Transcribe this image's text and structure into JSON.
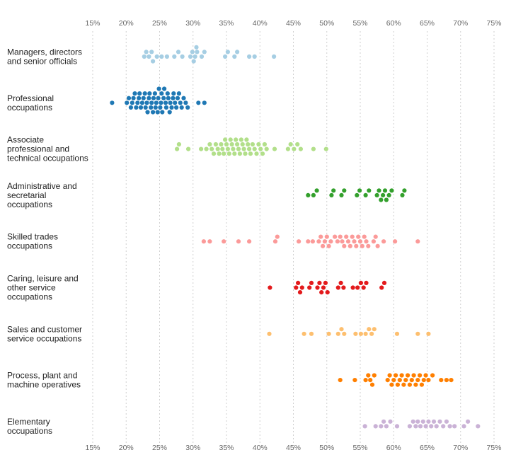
{
  "chart_data": {
    "type": "scatter",
    "variant": "beeswarm",
    "title": "",
    "xlabel": "",
    "ylabel": "",
    "xlim": [
      15,
      75
    ],
    "x_ticks": [
      15,
      20,
      25,
      30,
      35,
      40,
      45,
      50,
      55,
      60,
      65,
      70,
      75
    ],
    "x_tick_labels": [
      "15%",
      "20%",
      "25%",
      "30%",
      "35%",
      "40%",
      "45%",
      "50%",
      "55%",
      "60%",
      "65%",
      "70%",
      "75%"
    ],
    "x_ticks_position": "top and bottom",
    "grid": "vertical dashed",
    "legend": "none",
    "categories": [
      {
        "label": [
          "Managers, directors",
          "and senior officials"
        ],
        "color": "#a6cee3",
        "values": [
          22.7,
          23.0,
          23.4,
          23.8,
          24.0,
          24.6,
          25.3,
          26.1,
          27.2,
          27.8,
          28.4,
          29.6,
          29.9,
          30.1,
          30.3,
          30.5,
          30.6,
          31.3,
          31.7,
          34.8,
          35.2,
          36.2,
          36.6,
          38.4,
          39.2,
          42.1
        ]
      },
      {
        "label": [
          "Professional",
          "occupations"
        ],
        "color": "#1f78b4",
        "values": [
          17.9,
          20.1,
          20.4,
          20.7,
          20.9,
          21.1,
          21.3,
          21.5,
          21.7,
          21.9,
          22.0,
          22.2,
          22.4,
          22.6,
          22.8,
          22.9,
          23.1,
          23.2,
          23.4,
          23.5,
          23.7,
          23.8,
          24.0,
          24.1,
          24.3,
          24.4,
          24.5,
          24.7,
          24.8,
          24.9,
          25.1,
          25.2,
          25.3,
          25.4,
          25.6,
          25.7,
          25.9,
          26.0,
          26.2,
          26.3,
          26.5,
          26.6,
          26.8,
          27.0,
          27.1,
          27.3,
          27.5,
          27.7,
          27.9,
          28.1,
          28.3,
          28.6,
          28.9,
          29.2,
          30.8,
          31.7
        ]
      },
      {
        "label": [
          "Associate",
          "professional and",
          "technical occupations"
        ],
        "color": "#b2df8a",
        "values": [
          27.6,
          27.9,
          29.3,
          31.2,
          32.0,
          32.5,
          32.8,
          33.1,
          33.4,
          33.7,
          33.9,
          34.2,
          34.4,
          34.6,
          34.8,
          35.0,
          35.2,
          35.4,
          35.6,
          35.8,
          36.0,
          36.2,
          36.4,
          36.6,
          36.8,
          37.0,
          37.2,
          37.4,
          37.6,
          37.8,
          38.0,
          38.2,
          38.4,
          38.6,
          38.9,
          39.2,
          39.5,
          39.8,
          40.1,
          40.4,
          40.7,
          41.0,
          42.2,
          44.2,
          44.6,
          45.1,
          45.6,
          46.1,
          48.0,
          49.9
        ]
      },
      {
        "label": [
          "Administrative and",
          "secretarial",
          "occupations"
        ],
        "color": "#33a02c",
        "values": [
          47.2,
          48.0,
          48.5,
          50.7,
          51.0,
          52.2,
          52.6,
          54.5,
          54.9,
          55.8,
          56.3,
          57.5,
          57.8,
          58.1,
          58.4,
          58.7,
          58.9,
          59.3,
          59.7,
          61.3,
          61.6
        ]
      },
      {
        "label": [
          "Skilled trades",
          "occupations"
        ],
        "color": "#fb9a99",
        "values": [
          31.6,
          32.5,
          34.6,
          36.8,
          38.4,
          42.3,
          42.6,
          45.8,
          47.2,
          47.9,
          48.8,
          49.1,
          49.4,
          49.7,
          50.0,
          50.3,
          50.6,
          51.2,
          51.6,
          52.0,
          52.3,
          52.6,
          52.9,
          53.2,
          53.5,
          53.8,
          54.1,
          54.4,
          54.7,
          55.0,
          55.3,
          55.6,
          55.9,
          56.2,
          57.0,
          57.3,
          57.6,
          58.5,
          60.2,
          63.6
        ]
      },
      {
        "label": [
          "Caring, leisure and",
          "other service",
          "occupations"
        ],
        "color": "#e31a1c",
        "values": [
          41.5,
          45.4,
          45.7,
          46.0,
          46.3,
          47.4,
          47.7,
          48.6,
          48.9,
          49.2,
          49.5,
          49.8,
          50.1,
          51.7,
          52.1,
          52.5,
          53.9,
          54.6,
          55.1,
          55.5,
          55.9,
          58.2,
          58.6
        ]
      },
      {
        "label": [
          "Sales and customer",
          "service occupations"
        ],
        "color": "#fdbf6f",
        "values": [
          41.4,
          46.6,
          47.7,
          50.3,
          51.7,
          52.2,
          52.6,
          54.3,
          55.1,
          55.8,
          56.3,
          56.7,
          57.1,
          60.5,
          63.6,
          65.2
        ]
      },
      {
        "label": [
          "Process, plant and",
          "machine operatives"
        ],
        "color": "#ff7f00",
        "values": [
          52.0,
          54.2,
          55.8,
          56.2,
          56.5,
          56.8,
          57.1,
          59.1,
          59.4,
          59.7,
          60.0,
          60.3,
          60.6,
          60.9,
          61.2,
          61.5,
          61.8,
          62.1,
          62.4,
          62.7,
          63.0,
          63.3,
          63.6,
          63.9,
          64.2,
          64.5,
          64.8,
          65.2,
          65.8,
          67.1,
          67.9,
          68.6
        ]
      },
      {
        "label": [
          "Elementary",
          "occupations"
        ],
        "color": "#cab2d6",
        "values": [
          55.7,
          57.3,
          58.1,
          58.5,
          58.9,
          59.5,
          60.5,
          62.4,
          62.9,
          63.3,
          63.6,
          64.0,
          64.4,
          64.8,
          65.2,
          65.6,
          66.0,
          66.4,
          66.9,
          67.4,
          67.9,
          68.4,
          69.1,
          70.5,
          71.1,
          72.6
        ]
      }
    ]
  }
}
